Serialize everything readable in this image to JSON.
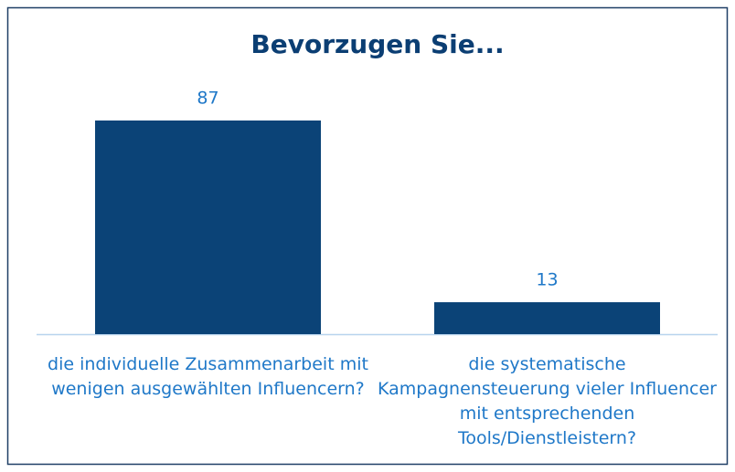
{
  "chart_data": {
    "type": "bar",
    "title": "Bevorzugen Sie...",
    "categories": [
      "die individuelle Zusammenarbeit mit wenigen ausgewählten Influencern?",
      "die systematische Kampagnensteuerung vieler Influencer mit entsprechenden Tools/Dienstleistern?"
    ],
    "values": [
      87,
      13
    ],
    "color": "#0b4377"
  }
}
